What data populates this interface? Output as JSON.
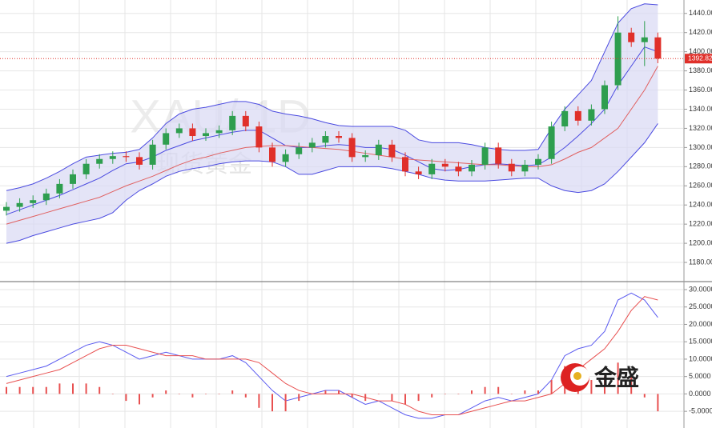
{
  "chart_data": {
    "type": "candlestick",
    "watermark": "XAU/ 1D",
    "watermark_cn": "现货黄金",
    "logo": "金盛",
    "open": [
      1234,
      1238,
      1242,
      1245,
      1252,
      1262,
      1272,
      1283,
      1288,
      1291,
      1290,
      1282,
      1303,
      1315,
      1320,
      1312,
      1315,
      1318,
      1333,
      1322,
      1300,
      1285,
      1293,
      1300,
      1305,
      1312,
      1310,
      1290,
      1292,
      1303,
      1290,
      1275,
      1272,
      1283,
      1280,
      1275,
      1282,
      1300,
      1283,
      1275,
      1282,
      1288,
      1322,
      1338,
      1328,
      1340,
      1365,
      1420,
      1410,
      1415
    ],
    "high": [
      1243,
      1247,
      1250,
      1257,
      1267,
      1277,
      1288,
      1293,
      1296,
      1296,
      1295,
      1308,
      1320,
      1325,
      1325,
      1320,
      1323,
      1338,
      1338,
      1327,
      1305,
      1298,
      1305,
      1310,
      1317,
      1317,
      1315,
      1297,
      1308,
      1308,
      1295,
      1280,
      1288,
      1288,
      1285,
      1287,
      1305,
      1305,
      1288,
      1287,
      1293,
      1327,
      1343,
      1343,
      1345,
      1370,
      1437,
      1425,
      1432,
      1420
    ],
    "low": [
      1229,
      1233,
      1237,
      1240,
      1247,
      1257,
      1267,
      1278,
      1283,
      1285,
      1277,
      1277,
      1298,
      1310,
      1307,
      1307,
      1310,
      1313,
      1317,
      1295,
      1280,
      1280,
      1288,
      1295,
      1300,
      1305,
      1285,
      1285,
      1287,
      1285,
      1270,
      1267,
      1267,
      1275,
      1270,
      1270,
      1277,
      1278,
      1270,
      1270,
      1277,
      1283,
      1317,
      1323,
      1323,
      1335,
      1360,
      1405,
      1385,
      1388
    ],
    "close": [
      1238,
      1242,
      1245,
      1252,
      1262,
      1272,
      1283,
      1288,
      1291,
      1290,
      1282,
      1303,
      1315,
      1320,
      1312,
      1315,
      1318,
      1333,
      1322,
      1300,
      1285,
      1293,
      1300,
      1305,
      1312,
      1310,
      1290,
      1292,
      1303,
      1290,
      1275,
      1272,
      1283,
      1280,
      1275,
      1282,
      1300,
      1283,
      1275,
      1282,
      1288,
      1322,
      1338,
      1328,
      1340,
      1365,
      1420,
      1410,
      1415,
      1392.82
    ],
    "up_color": "#2e9e4f",
    "down_color": "#e0302a",
    "series": [
      {
        "name": "upper",
        "color": "#4a4ae0",
        "values": [
          1255,
          1258,
          1262,
          1268,
          1275,
          1283,
          1290,
          1292,
          1294,
          1295,
          1298,
          1310,
          1325,
          1335,
          1340,
          1342,
          1345,
          1348,
          1348,
          1345,
          1338,
          1335,
          1333,
          1330,
          1326,
          1323,
          1322,
          1322,
          1322,
          1322,
          1318,
          1308,
          1305,
          1305,
          1305,
          1303,
          1300,
          1298,
          1297,
          1297,
          1298,
          1320,
          1340,
          1355,
          1370,
          1400,
          1430,
          1445,
          1450,
          1449
        ]
      },
      {
        "name": "lower",
        "color": "#4a4ae0",
        "values": [
          1200,
          1203,
          1208,
          1212,
          1216,
          1220,
          1223,
          1226,
          1232,
          1245,
          1255,
          1262,
          1270,
          1275,
          1278,
          1280,
          1283,
          1285,
          1286,
          1286,
          1285,
          1280,
          1272,
          1272,
          1276,
          1280,
          1280,
          1280,
          1280,
          1278,
          1275,
          1272,
          1268,
          1266,
          1265,
          1265,
          1265,
          1266,
          1267,
          1268,
          1268,
          1260,
          1255,
          1253,
          1255,
          1262,
          1275,
          1290,
          1305,
          1325
        ]
      },
      {
        "name": "mid",
        "color": "#4a4ae0",
        "values": [
          1230,
          1235,
          1240,
          1245,
          1250,
          1256,
          1262,
          1268,
          1276,
          1283,
          1285,
          1290,
          1297,
          1302,
          1307,
          1310,
          1313,
          1316,
          1318,
          1318,
          1310,
          1302,
          1300,
          1300,
          1302,
          1303,
          1302,
          1300,
          1300,
          1298,
          1292,
          1285,
          1278,
          1276,
          1277,
          1280,
          1282,
          1283,
          1282,
          1281,
          1282,
          1290,
          1300,
          1312,
          1325,
          1340,
          1365,
          1385,
          1405,
          1400
        ]
      },
      {
        "name": "ma",
        "color": "#e06060",
        "values": [
          1220,
          1224,
          1228,
          1232,
          1236,
          1240,
          1244,
          1248,
          1254,
          1260,
          1265,
          1270,
          1276,
          1282,
          1287,
          1290,
          1294,
          1297,
          1300,
          1301,
          1302,
          1302,
          1301,
          1300,
          1299,
          1298,
          1296,
          1294,
          1292,
          1290,
          1288,
          1287,
          1286,
          1285,
          1284,
          1283,
          1282,
          1282,
          1281,
          1280,
          1280,
          1282,
          1288,
          1295,
          1300,
          1310,
          1320,
          1340,
          1360,
          1385
        ]
      },
      {
        "name": "dif",
        "color": "#5a5af0",
        "axis": "y2",
        "values": [
          5,
          6,
          7,
          8,
          10,
          12,
          14,
          15,
          14,
          12,
          10,
          11,
          12,
          11,
          10,
          10,
          10,
          11,
          9,
          5,
          1,
          -2,
          -1,
          0,
          1,
          1,
          -1,
          -3,
          -2,
          -4,
          -6,
          -7,
          -7,
          -6,
          -6,
          -4,
          -2,
          -1,
          -2,
          -1,
          0,
          4,
          11,
          13,
          14,
          18,
          27,
          29,
          27,
          22
        ]
      },
      {
        "name": "dea",
        "color": "#e85050",
        "axis": "y2",
        "values": [
          3,
          4,
          5,
          6,
          7,
          9,
          11,
          13,
          14,
          14,
          13,
          12,
          11,
          11,
          11,
          10,
          10,
          10,
          10,
          9,
          6,
          3,
          1,
          0,
          0,
          0,
          0,
          -1,
          -2,
          -2,
          -3,
          -5,
          -6,
          -6,
          -6,
          -5,
          -4,
          -3,
          -2,
          -2,
          -1,
          0,
          3,
          7,
          10,
          13,
          18,
          24,
          28,
          27
        ]
      }
    ],
    "histogram": [
      2,
      2,
      2,
      2,
      3,
      3,
      3,
      2,
      0,
      -2,
      -3,
      -1,
      1,
      0,
      -1,
      0,
      0,
      1,
      -1,
      -4,
      -5,
      -5,
      -2,
      0,
      1,
      1,
      -1,
      -2,
      0,
      -2,
      -3,
      -2,
      -1,
      0,
      0,
      1,
      2,
      2,
      0,
      1,
      1,
      4,
      8,
      6,
      4,
      5,
      9,
      5,
      -1,
      -5
    ],
    "histogram_color": "#e85050",
    "last_price": 1392.82,
    "ylim": [
      1160,
      1454
    ],
    "yticks": [
      {
        "value": 1180,
        "label": "1180.00"
      },
      {
        "value": 1200,
        "label": "1200.00"
      },
      {
        "value": 1220,
        "label": "1220.00"
      },
      {
        "value": 1240,
        "label": "1240.00"
      },
      {
        "value": 1260,
        "label": "1260.00"
      },
      {
        "value": 1280,
        "label": "1280.00"
      },
      {
        "value": 1300,
        "label": "1300.00"
      },
      {
        "value": 1320,
        "label": "1320.00"
      },
      {
        "value": 1340,
        "label": "1340.00"
      },
      {
        "value": 1360,
        "label": "1360.00"
      },
      {
        "value": 1380,
        "label": "1380.00"
      },
      {
        "value": 1400,
        "label": "1400.00"
      },
      {
        "value": 1420,
        "label": "1420.00"
      },
      {
        "value": 1440,
        "label": "1440.00"
      }
    ],
    "y2lim": [
      -9.8,
      32.3
    ],
    "y2ticks": [
      {
        "value": -5,
        "label": "-5.0000"
      },
      {
        "value": 0,
        "label": "0.0000"
      },
      {
        "value": 5,
        "label": "5.0000"
      },
      {
        "value": 10,
        "label": "10.0000"
      },
      {
        "value": 15,
        "label": "15.0000"
      },
      {
        "value": 20,
        "label": "20.0000"
      },
      {
        "value": 25,
        "label": "25.0000"
      },
      {
        "value": 30,
        "label": "30.0000"
      }
    ],
    "grid": true
  }
}
